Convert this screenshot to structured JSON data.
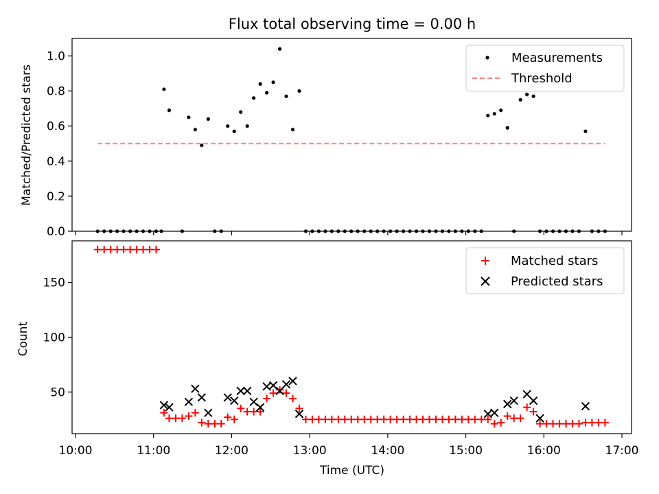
{
  "chart_data": [
    {
      "type": "scatter",
      "title": "Flux total observing time = 0.00 h",
      "xlabel": "",
      "ylabel": "Matched/Predicted stars",
      "xlim": [
        "10:00",
        "17:00"
      ],
      "ylim": [
        0,
        1.1
      ],
      "yticks": [
        0,
        0.2,
        0.4,
        0.6,
        0.8,
        1.0
      ],
      "ytick_labels": [
        "0.0",
        "0.2",
        "0.4",
        "0.6",
        "0.8",
        "1.0"
      ],
      "legend": "top-right",
      "series": [
        {
          "name": "Measurements",
          "kind": "dot",
          "color": "#000000",
          "x": [
            "10:17",
            "10:22",
            "10:27",
            "10:32",
            "10:37",
            "10:42",
            "10:47",
            "10:52",
            "10:57",
            "11:02",
            "11:06",
            "11:08",
            "11:12",
            "11:22",
            "11:27",
            "11:32",
            "11:37",
            "11:42",
            "11:47",
            "11:52",
            "11:57",
            "12:02",
            "12:07",
            "12:12",
            "12:17",
            "12:22",
            "12:27",
            "12:32",
            "12:37",
            "12:42",
            "12:47",
            "12:52",
            "12:57",
            "13:02",
            "13:07",
            "13:12",
            "13:17",
            "13:22",
            "13:27",
            "13:32",
            "13:37",
            "13:42",
            "13:47",
            "13:52",
            "13:57",
            "14:02",
            "14:07",
            "14:12",
            "14:17",
            "14:22",
            "14:27",
            "14:32",
            "14:37",
            "14:42",
            "14:47",
            "14:52",
            "14:57",
            "15:02",
            "15:07",
            "15:12",
            "15:17",
            "15:22",
            "15:27",
            "15:32",
            "15:37",
            "15:42",
            "15:47",
            "15:52",
            "15:57",
            "16:02",
            "16:07",
            "16:12",
            "16:17",
            "16:22",
            "16:27",
            "16:32",
            "16:37",
            "16:42",
            "16:47"
          ],
          "y": [
            0,
            0,
            0,
            0,
            0,
            0,
            0,
            0,
            0,
            0,
            0,
            0.81,
            0.69,
            0,
            0.65,
            0.58,
            0.49,
            0.64,
            0,
            0,
            0.6,
            0.57,
            0.68,
            0.6,
            0.76,
            0.84,
            0.79,
            0.85,
            1.04,
            0.77,
            0.58,
            0.8,
            0,
            0,
            0,
            0,
            0,
            0,
            0,
            0,
            0,
            0,
            0,
            0,
            0,
            0,
            0,
            0,
            0,
            0,
            0,
            0,
            0,
            0,
            0,
            0,
            0,
            0,
            0,
            0,
            0.66,
            0.67,
            0.69,
            0.59,
            0,
            0.75,
            0.78,
            0.77,
            0,
            0,
            0,
            0,
            0,
            0,
            0,
            0.57,
            0,
            0,
            0
          ]
        },
        {
          "name": "Threshold",
          "kind": "dashed-line",
          "color": "#ff7f7f",
          "x": [
            "10:17",
            "16:47"
          ],
          "y": [
            0.5,
            0.5
          ]
        }
      ]
    },
    {
      "type": "scatter",
      "title": "",
      "xlabel": "Time (UTC)",
      "ylabel": "Count",
      "xlim": [
        "10:00",
        "17:00"
      ],
      "ylim": [
        12,
        188
      ],
      "xticks": [
        "10:00",
        "11:00",
        "12:00",
        "13:00",
        "14:00",
        "15:00",
        "16:00",
        "17:00"
      ],
      "yticks": [
        50,
        100,
        150
      ],
      "ytick_labels": [
        "50",
        "100",
        "150"
      ],
      "legend": "top-right",
      "series": [
        {
          "name": "Matched stars",
          "kind": "plus",
          "color": "#ff0000",
          "x": [
            "10:17",
            "10:22",
            "10:27",
            "10:32",
            "10:37",
            "10:42",
            "10:47",
            "10:52",
            "10:57",
            "11:02",
            "11:08",
            "11:12",
            "11:17",
            "11:22",
            "11:27",
            "11:32",
            "11:37",
            "11:42",
            "11:47",
            "11:52",
            "11:57",
            "12:02",
            "12:07",
            "12:12",
            "12:17",
            "12:22",
            "12:27",
            "12:32",
            "12:37",
            "12:42",
            "12:47",
            "12:52",
            "12:57",
            "13:02",
            "13:07",
            "13:12",
            "13:17",
            "13:22",
            "13:27",
            "13:32",
            "13:37",
            "13:42",
            "13:47",
            "13:52",
            "13:57",
            "14:02",
            "14:07",
            "14:12",
            "14:17",
            "14:22",
            "14:27",
            "14:32",
            "14:37",
            "14:42",
            "14:47",
            "14:52",
            "14:57",
            "15:02",
            "15:07",
            "15:12",
            "15:17",
            "15:22",
            "15:27",
            "15:32",
            "15:37",
            "15:42",
            "15:47",
            "15:52",
            "15:57",
            "16:02",
            "16:07",
            "16:12",
            "16:17",
            "16:22",
            "16:27",
            "16:32",
            "16:37",
            "16:42",
            "16:47"
          ],
          "y": [
            180,
            180,
            180,
            180,
            180,
            180,
            180,
            180,
            180,
            180,
            31,
            26,
            26,
            26,
            28,
            31,
            22,
            21,
            21,
            21,
            27,
            25,
            35,
            32,
            32,
            32,
            44,
            49,
            52,
            49,
            44,
            35,
            25,
            25,
            25,
            25,
            25,
            25,
            25,
            25,
            25,
            25,
            25,
            25,
            25,
            25,
            25,
            25,
            25,
            25,
            25,
            25,
            25,
            25,
            25,
            25,
            25,
            25,
            25,
            25,
            25,
            21,
            22,
            28,
            26,
            26,
            36,
            32,
            21,
            21,
            21,
            21,
            21,
            21,
            21,
            22,
            22,
            22,
            22
          ]
        },
        {
          "name": "Predicted stars",
          "kind": "x",
          "color": "#000000",
          "x": [
            "11:08",
            "11:12",
            "11:27",
            "11:32",
            "11:37",
            "11:42",
            "11:57",
            "12:02",
            "12:07",
            "12:12",
            "12:17",
            "12:22",
            "12:27",
            "12:32",
            "12:37",
            "12:42",
            "12:47",
            "12:52",
            "15:17",
            "15:22",
            "15:32",
            "15:37",
            "15:47",
            "15:52",
            "15:57",
            "16:32"
          ],
          "y": [
            38,
            36,
            41,
            53,
            45,
            31,
            45,
            42,
            51,
            51,
            41,
            36,
            55,
            56,
            51,
            57,
            60,
            30,
            30,
            31,
            39,
            42,
            48,
            42,
            26,
            37
          ]
        }
      ]
    }
  ]
}
